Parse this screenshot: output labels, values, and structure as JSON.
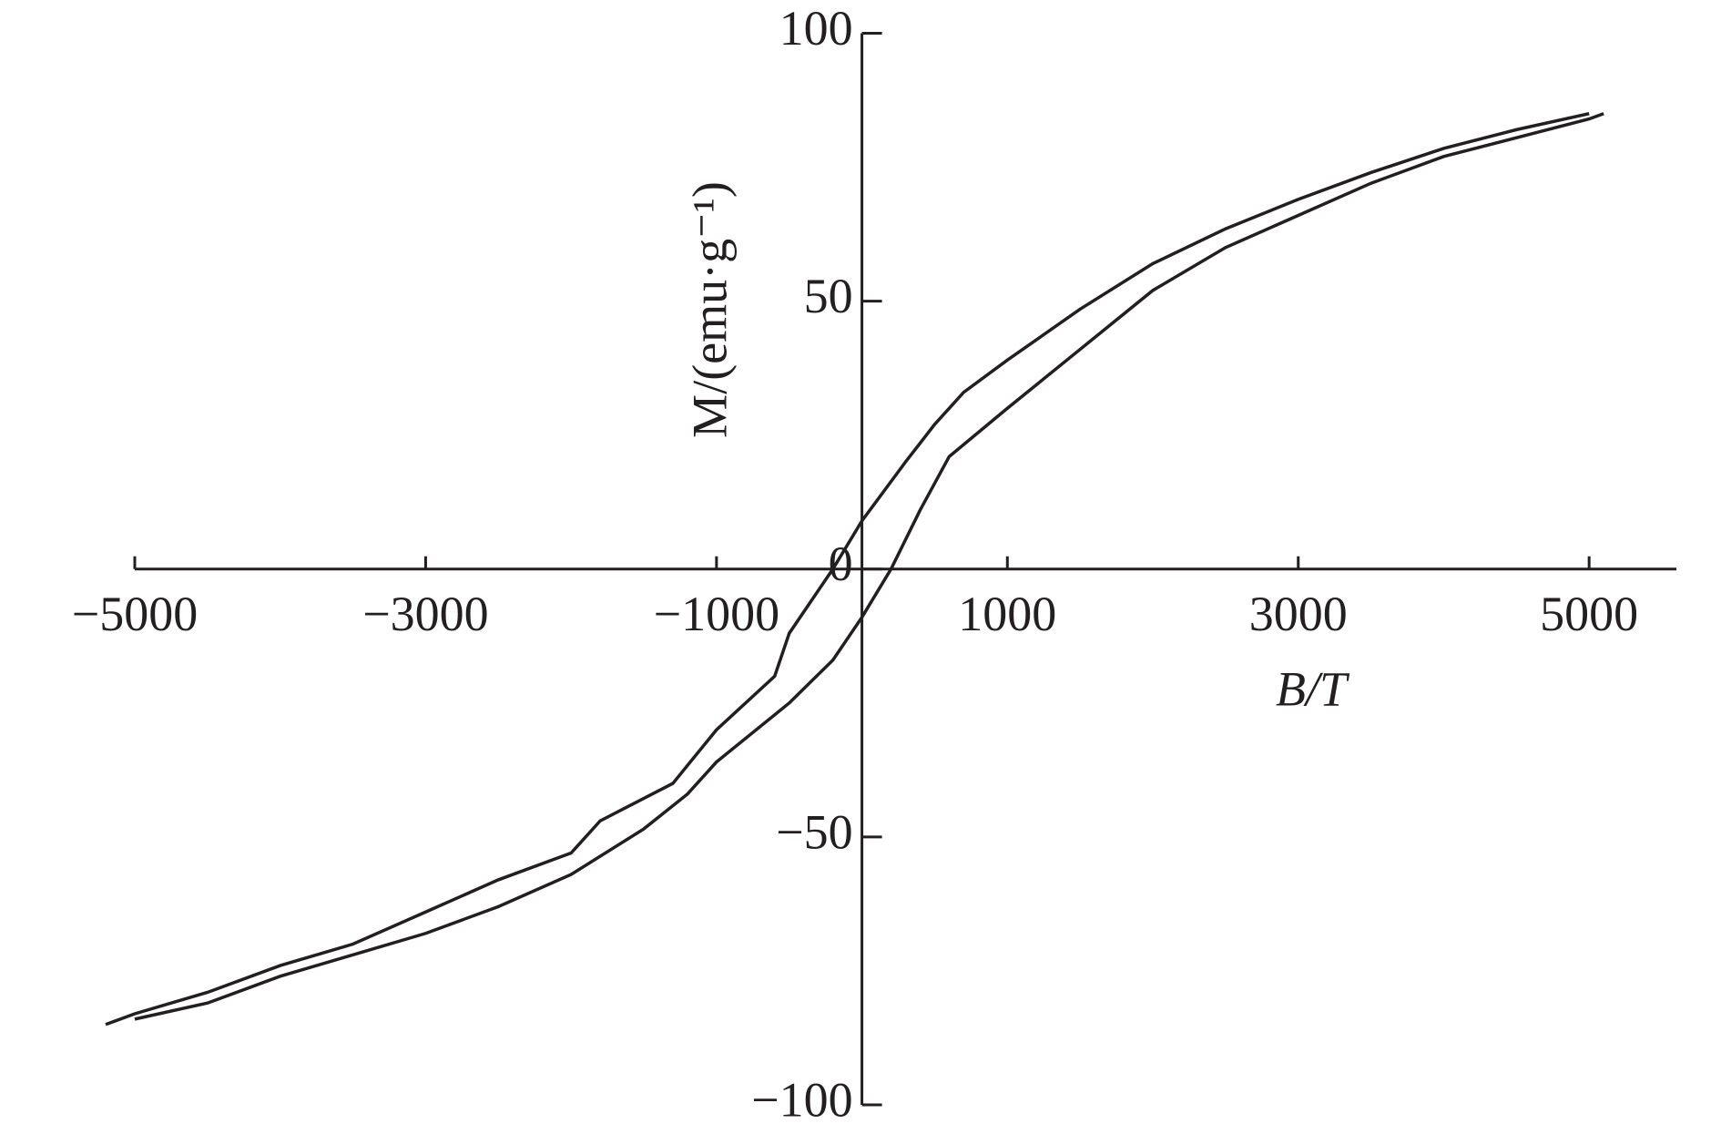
{
  "chart_data": {
    "type": "line",
    "x_label": "B/T",
    "y_label": "M/(emu·g⁻¹)",
    "xlim": [
      -5000,
      5600
    ],
    "ylim": [
      -100,
      100
    ],
    "xticks": [
      {
        "value": -5000,
        "label": "−5000"
      },
      {
        "value": -3000,
        "label": "−3000"
      },
      {
        "value": -1000,
        "label": "−1000"
      },
      1000,
      3000,
      5000
    ],
    "yticks": [
      {
        "value": -100,
        "label": "−100"
      },
      {
        "value": -50,
        "label": "−50"
      },
      0,
      50,
      100
    ],
    "series": [
      {
        "color": "#231f20",
        "x": [
          5000,
          4500,
          4000,
          3500,
          3000,
          2500,
          2000,
          1500,
          1000,
          700,
          500,
          300,
          0,
          -200,
          -500,
          -600,
          -1000,
          -1300,
          -1800,
          -2000,
          -2500,
          -3000,
          -3500,
          -4000,
          -4500,
          -5000,
          -5200
        ],
        "values": [
          85,
          82,
          78.5,
          74,
          69,
          63.5,
          57,
          48.5,
          39,
          33,
          27,
          20,
          9,
          0,
          -12,
          -20,
          -30,
          -40,
          -47,
          -53,
          -58,
          -64,
          -70,
          -74,
          -79,
          -83,
          -85
        ]
      },
      {
        "color": "#231f20",
        "x": [
          -5000,
          -4500,
          -4000,
          -3500,
          -3000,
          -2500,
          -2000,
          -1500,
          -1200,
          -1000,
          -500,
          -200,
          0,
          200,
          400,
          600,
          1000,
          1500,
          2000,
          2500,
          3000,
          3500,
          4000,
          5000,
          5100
        ],
        "values": [
          -84,
          -81,
          -76,
          -72,
          -68,
          -63,
          -57,
          -48.5,
          -42,
          -36,
          -25,
          -17,
          -9,
          0,
          11,
          21,
          30,
          41,
          52,
          60,
          66,
          72,
          77,
          84,
          85
        ]
      }
    ]
  }
}
